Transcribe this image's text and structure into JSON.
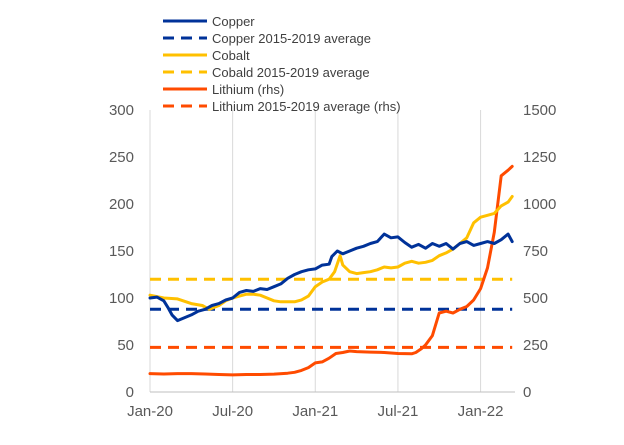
{
  "chart_data": {
    "type": "line",
    "title": "",
    "xlabel": "",
    "ylabel": "",
    "y2label": "",
    "x_ticks": [
      "Jan-20",
      "Jul-20",
      "Jan-21",
      "Jul-21",
      "Jan-22"
    ],
    "x_tick_months": [
      0,
      6,
      12,
      18,
      24
    ],
    "x_range_months": [
      0,
      26.5
    ],
    "ylim": [
      0,
      300
    ],
    "y_ticks": [
      "0",
      "50",
      "100",
      "150",
      "200",
      "250",
      "300"
    ],
    "y_tick_values": [
      0,
      50,
      100,
      150,
      200,
      250,
      300
    ],
    "y2lim": [
      0,
      1500
    ],
    "y2_ticks": [
      "0",
      "250",
      "500",
      "750",
      "1000",
      "1250",
      "1500"
    ],
    "y2_tick_values": [
      0,
      250,
      500,
      750,
      1000,
      1250,
      1500
    ],
    "grid": "vertical lines at x ticks",
    "legend_position": "top",
    "legend": [
      {
        "label": "Copper",
        "color": "#003299",
        "style": "solid"
      },
      {
        "label": "Copper 2015-2019 average",
        "color": "#003299",
        "style": "dashed"
      },
      {
        "label": "Cobalt",
        "color": "#FFC000",
        "style": "solid"
      },
      {
        "label": "Cobald 2015-2019 average",
        "color": "#FFC000",
        "style": "dashed"
      },
      {
        "label": "Lithium (rhs)",
        "color": "#FF4B00",
        "style": "solid"
      },
      {
        "label": "Lithium 2015-2019 average (rhs)",
        "color": "#FF4B00",
        "style": "dashed"
      }
    ],
    "series": [
      {
        "name": "Copper",
        "axis": "left",
        "color": "#003299",
        "style": "solid",
        "points": [
          [
            0,
            100
          ],
          [
            0.5,
            101
          ],
          [
            1,
            97
          ],
          [
            1.3,
            90
          ],
          [
            1.6,
            82
          ],
          [
            2,
            76
          ],
          [
            2.5,
            79
          ],
          [
            3,
            82
          ],
          [
            3.5,
            86
          ],
          [
            4,
            88
          ],
          [
            4.5,
            92
          ],
          [
            5,
            94
          ],
          [
            5.5,
            98
          ],
          [
            6,
            100
          ],
          [
            6.5,
            106
          ],
          [
            7,
            108
          ],
          [
            7.5,
            107
          ],
          [
            8,
            110
          ],
          [
            8.5,
            109
          ],
          [
            9,
            112
          ],
          [
            9.5,
            115
          ],
          [
            10,
            121
          ],
          [
            10.5,
            125
          ],
          [
            11,
            128
          ],
          [
            11.5,
            130
          ],
          [
            12,
            131
          ],
          [
            12.5,
            135
          ],
          [
            13,
            136
          ],
          [
            13.2,
            144
          ],
          [
            13.6,
            150
          ],
          [
            14,
            147
          ],
          [
            14.5,
            150
          ],
          [
            15,
            153
          ],
          [
            15.5,
            155
          ],
          [
            16,
            158
          ],
          [
            16.5,
            160
          ],
          [
            17,
            168
          ],
          [
            17.5,
            164
          ],
          [
            18,
            165
          ],
          [
            18.5,
            159
          ],
          [
            19,
            154
          ],
          [
            19.5,
            157
          ],
          [
            20,
            153
          ],
          [
            20.5,
            158
          ],
          [
            21,
            155
          ],
          [
            21.5,
            158
          ],
          [
            22,
            152
          ],
          [
            22.5,
            158
          ],
          [
            23,
            160
          ],
          [
            23.5,
            156
          ],
          [
            24,
            158
          ],
          [
            24.5,
            160
          ],
          [
            25,
            158
          ],
          [
            25.5,
            162
          ],
          [
            26,
            168
          ],
          [
            26.3,
            160
          ]
        ]
      },
      {
        "name": "Copper 2015-2019 average",
        "axis": "left",
        "color": "#003299",
        "style": "dashed",
        "points": [
          [
            0,
            88
          ],
          [
            26.3,
            88
          ]
        ]
      },
      {
        "name": "Cobalt",
        "axis": "left",
        "color": "#FFC000",
        "style": "solid",
        "points": [
          [
            0,
            103
          ],
          [
            1,
            100
          ],
          [
            2,
            99
          ],
          [
            3,
            94
          ],
          [
            3.8,
            92
          ],
          [
            4.3,
            88
          ],
          [
            5,
            92
          ],
          [
            5.5,
            97
          ],
          [
            6,
            100
          ],
          [
            6.5,
            102
          ],
          [
            7,
            104
          ],
          [
            7.5,
            104
          ],
          [
            8,
            103
          ],
          [
            8.5,
            100
          ],
          [
            9,
            97
          ],
          [
            9.5,
            96
          ],
          [
            10,
            96
          ],
          [
            10.5,
            96
          ],
          [
            11,
            98
          ],
          [
            11.5,
            102
          ],
          [
            12,
            112
          ],
          [
            12.5,
            117
          ],
          [
            13,
            120
          ],
          [
            13.4,
            128
          ],
          [
            13.8,
            145
          ],
          [
            14,
            135
          ],
          [
            14.5,
            128
          ],
          [
            15,
            126
          ],
          [
            15.5,
            127
          ],
          [
            16,
            128
          ],
          [
            16.5,
            130
          ],
          [
            17,
            133
          ],
          [
            17.5,
            132
          ],
          [
            18,
            133
          ],
          [
            18.5,
            137
          ],
          [
            19,
            139
          ],
          [
            19.5,
            137
          ],
          [
            20,
            138
          ],
          [
            20.5,
            140
          ],
          [
            21,
            145
          ],
          [
            21.5,
            148
          ],
          [
            22,
            152
          ],
          [
            22.5,
            158
          ],
          [
            23,
            164
          ],
          [
            23.5,
            180
          ],
          [
            24,
            186
          ],
          [
            24.5,
            188
          ],
          [
            25,
            190
          ],
          [
            25.5,
            198
          ],
          [
            26,
            202
          ],
          [
            26.3,
            208
          ]
        ]
      },
      {
        "name": "Cobald 2015-2019 average",
        "axis": "left",
        "color": "#FFC000",
        "style": "dashed",
        "points": [
          [
            0,
            120
          ],
          [
            26.3,
            120
          ]
        ]
      },
      {
        "name": "Lithium (rhs)",
        "axis": "right",
        "color": "#FF4B00",
        "style": "solid",
        "points": [
          [
            0,
            98
          ],
          [
            1,
            96
          ],
          [
            2,
            98
          ],
          [
            3,
            98
          ],
          [
            4,
            96
          ],
          [
            5,
            93
          ],
          [
            6,
            91
          ],
          [
            7,
            93
          ],
          [
            8,
            93
          ],
          [
            9,
            95
          ],
          [
            10,
            100
          ],
          [
            10.5,
            105
          ],
          [
            11,
            115
          ],
          [
            11.5,
            130
          ],
          [
            12,
            155
          ],
          [
            12.5,
            160
          ],
          [
            13,
            180
          ],
          [
            13.5,
            205
          ],
          [
            14,
            210
          ],
          [
            14.5,
            218
          ],
          [
            15,
            215
          ],
          [
            16,
            212
          ],
          [
            17,
            210
          ],
          [
            18,
            205
          ],
          [
            19,
            203
          ],
          [
            19.3,
            210
          ],
          [
            19.7,
            230
          ],
          [
            20,
            250
          ],
          [
            20.5,
            300
          ],
          [
            21,
            420
          ],
          [
            21.5,
            430
          ],
          [
            22,
            420
          ],
          [
            22.5,
            440
          ],
          [
            23,
            455
          ],
          [
            23.5,
            490
          ],
          [
            24,
            550
          ],
          [
            24.5,
            660
          ],
          [
            25,
            850
          ],
          [
            25.5,
            1150
          ],
          [
            26,
            1180
          ],
          [
            26.3,
            1200
          ]
        ]
      },
      {
        "name": "Lithium 2015-2019 average (rhs)",
        "axis": "right",
        "color": "#FF4B00",
        "style": "dashed",
        "points": [
          [
            0,
            237
          ],
          [
            26.3,
            237
          ]
        ]
      }
    ]
  }
}
